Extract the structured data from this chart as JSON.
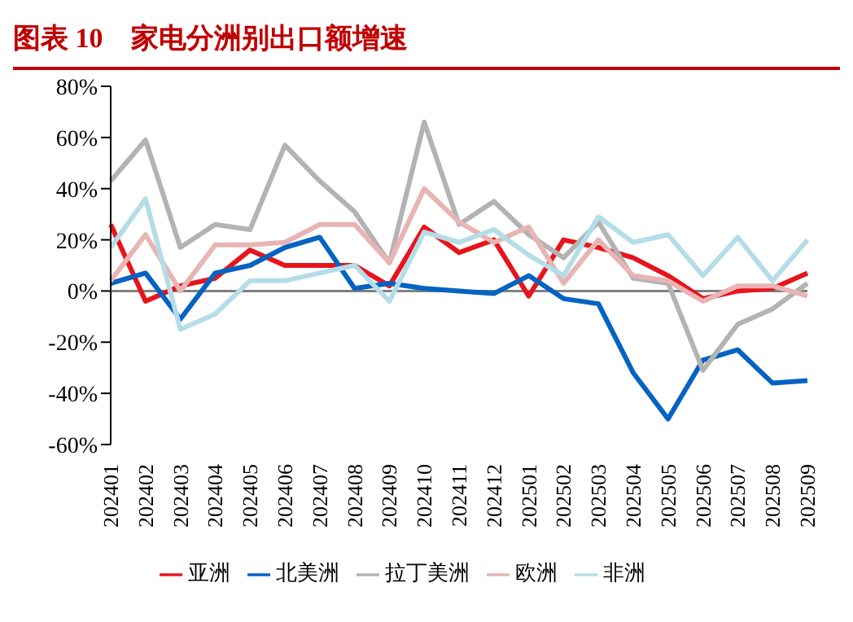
{
  "chart_data": {
    "type": "line",
    "title": "图表 10　家电分洲别出口额增速",
    "categories": [
      "202401",
      "202402",
      "202403",
      "202404",
      "202405",
      "202406",
      "202407",
      "202408",
      "202409",
      "202410",
      "202411",
      "202412",
      "202501",
      "202502",
      "202503",
      "202504",
      "202505",
      "202506",
      "202507",
      "202508",
      "202509"
    ],
    "series": [
      {
        "name": "亚洲",
        "color": "#e8141c",
        "values": [
          26,
          -4,
          2,
          5,
          16,
          10,
          10,
          10,
          2,
          25,
          15,
          20,
          -2,
          20,
          17,
          13,
          6,
          -3,
          0,
          1,
          7
        ]
      },
      {
        "name": "北美洲",
        "color": "#0563c1",
        "values": [
          3,
          7,
          -11,
          7,
          10,
          17,
          21,
          1,
          3,
          1,
          0,
          -1,
          6,
          -3,
          -5,
          -32,
          -50,
          -27,
          -23,
          -36,
          -35
        ]
      },
      {
        "name": "拉丁美洲",
        "color": "#b3b3b3",
        "values": [
          43,
          59,
          17,
          26,
          24,
          57,
          43,
          31,
          11,
          66,
          26,
          35,
          22,
          13,
          27,
          5,
          3,
          -31,
          -13,
          -7,
          3
        ]
      },
      {
        "name": "欧洲",
        "color": "#e8b4b4",
        "values": [
          4,
          22,
          0,
          18,
          18,
          19,
          26,
          26,
          11,
          40,
          27,
          19,
          25,
          3,
          20,
          6,
          4,
          -4,
          2,
          2,
          -2
        ]
      },
      {
        "name": "非洲",
        "color": "#b4dde8",
        "values": [
          17,
          36,
          -15,
          -9,
          4,
          4,
          7,
          10,
          -4,
          23,
          19,
          24,
          14,
          6,
          29,
          19,
          22,
          6,
          21,
          4,
          20
        ]
      }
    ],
    "ylim": [
      -60,
      80
    ],
    "yticks": [
      {
        "value": -60,
        "label": "-60%"
      },
      {
        "value": -40,
        "label": "-40%"
      },
      {
        "value": -20,
        "label": "-20%"
      },
      {
        "value": 0,
        "label": "0%"
      },
      {
        "value": 20,
        "label": "20%"
      },
      {
        "value": 40,
        "label": "40%"
      },
      {
        "value": 60,
        "label": "60%"
      },
      {
        "value": 80,
        "label": "80%"
      }
    ],
    "ref_lines": [
      {
        "axis": "y",
        "value": 0,
        "color": "#808080"
      }
    ],
    "legend": "bottom",
    "marker": "none"
  }
}
